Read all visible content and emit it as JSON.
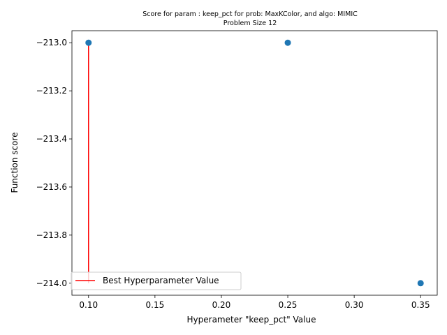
{
  "chart_data": {
    "type": "scatter",
    "title": "Score for param : keep_pct for prob: MaxKColor, and algo: MIMIC",
    "subtitle": "Problem Size 12",
    "xlabel": "Hyperameter \"keep_pct\" Value",
    "ylabel": "Function score",
    "xlim": [
      0.0875,
      0.3625
    ],
    "ylim": [
      -214.05,
      -212.95
    ],
    "x_ticks": [
      0.1,
      0.15,
      0.2,
      0.25,
      0.3,
      0.35
    ],
    "x_tick_labels": [
      "0.10",
      "0.15",
      "0.20",
      "0.25",
      "0.30",
      "0.35"
    ],
    "y_ticks": [
      -213.0,
      -213.2,
      -213.4,
      -213.6,
      -213.8,
      -214.0
    ],
    "y_tick_labels": [
      "−213.0",
      "−213.2",
      "−213.4",
      "−213.6",
      "−213.8",
      "−214.0"
    ],
    "grid": false,
    "legend_position": "lower-left",
    "series": [
      {
        "type": "scatter",
        "color": "#1f77b4",
        "x": [
          0.1,
          0.25,
          0.35
        ],
        "y": [
          -213.0,
          -213.0,
          -214.0
        ]
      },
      {
        "name": "Best Hyperparameter Value",
        "type": "vline",
        "color": "#ff0000",
        "x": 0.1,
        "y_from": -214.0,
        "y_to": -213.0
      }
    ]
  }
}
